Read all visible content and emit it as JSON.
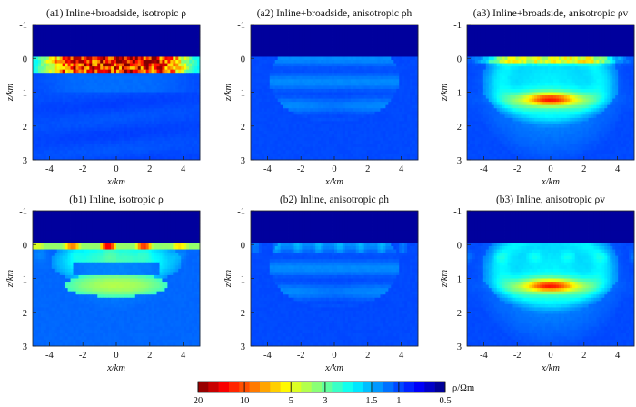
{
  "chart_data": {
    "type": "heatmap",
    "panels": [
      {
        "label": "(a1) Inline+broadside, isotropic ρ",
        "pattern": "a1"
      },
      {
        "label": "(a2) Inline+broadside, anisotropic ρh",
        "pattern": "a2"
      },
      {
        "label": "(a3) Inline+broadside, anisotropic ρv",
        "pattern": "a3"
      },
      {
        "label": "(b1) Inline, isotropic ρ",
        "pattern": "b1"
      },
      {
        "label": "(b2) Inline, anisotropic ρh",
        "pattern": "b2"
      },
      {
        "label": "(b3) Inline, anisotropic ρv",
        "pattern": "b3"
      }
    ],
    "xlabel": "x/km",
    "ylabel": "z/km",
    "xlim": [
      -5,
      5
    ],
    "ylim": [
      3,
      -1
    ],
    "xticks": [
      -4,
      -2,
      0,
      2,
      4
    ],
    "xtick_labels": [
      "-4",
      "-2",
      "0",
      "2",
      "4"
    ],
    "yticks": [
      -1,
      0,
      1,
      2,
      3
    ],
    "ytick_labels": [
      "-1",
      "0",
      "1",
      "2",
      "3"
    ],
    "colorbar": {
      "label": "ρ/Ωm",
      "scale": "log",
      "range": [
        20,
        0.5
      ],
      "ticks": [
        20,
        10,
        5,
        3,
        1.5,
        1,
        0.5
      ],
      "tick_labels": [
        "20",
        "10",
        "5",
        "3",
        "1.5",
        "1",
        "0.5"
      ]
    },
    "background_resistivity": 1,
    "air_layer": {
      "z_top": -1,
      "z_bottom": 0
    }
  }
}
